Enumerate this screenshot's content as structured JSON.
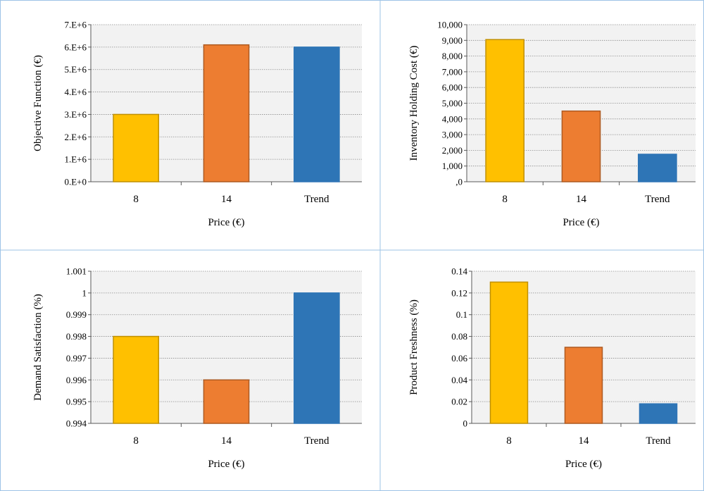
{
  "chart_data": [
    {
      "type": "bar",
      "categories": [
        "8",
        "14",
        "Trend"
      ],
      "values": [
        3000000.0,
        6100000.0,
        6000000.0
      ],
      "xlabel": "Price (€)",
      "ylabel": "Objective Function (€)",
      "ylim": [
        0,
        7000000
      ],
      "yticks": [
        "0.E+0",
        "1.E+6",
        "2.E+6",
        "3.E+6",
        "4.E+6",
        "5.E+6",
        "6.E+6",
        "7.E+6"
      ],
      "grid": true,
      "colors": [
        "#FFC000",
        "#ED7D31",
        "#2E75B6"
      ]
    },
    {
      "type": "bar",
      "categories": [
        "8",
        "14",
        "Trend"
      ],
      "values": [
        9050,
        4500,
        1750
      ],
      "xlabel": "Price (€)",
      "ylabel": "Inventory Holding Cost (€)",
      "ylim": [
        0,
        10000
      ],
      "yticks": [
        ",0",
        "1,000",
        "2,000",
        "3,000",
        "4,000",
        "5,000",
        "6,000",
        "7,000",
        "8,000",
        "9,000",
        "10,000"
      ],
      "grid": true,
      "colors": [
        "#FFC000",
        "#ED7D31",
        "#2E75B6"
      ]
    },
    {
      "type": "bar",
      "categories": [
        "8",
        "14",
        "Trend"
      ],
      "values": [
        0.998,
        0.996,
        1.0
      ],
      "xlabel": "Price (€)",
      "ylabel": "Demand Satisfaction (%)",
      "ylim": [
        0.994,
        1.001
      ],
      "yticks": [
        "0.994",
        "0.995",
        "0.996",
        "0.997",
        "0.998",
        "0.999",
        "1",
        "1.001"
      ],
      "grid": true,
      "colors": [
        "#FFC000",
        "#ED7D31",
        "#2E75B6"
      ]
    },
    {
      "type": "bar",
      "categories": [
        "8",
        "14",
        "Trend"
      ],
      "values": [
        0.13,
        0.07,
        0.018
      ],
      "xlabel": "Price (€)",
      "ylabel": "Product Freshness (%)",
      "ylim": [
        0,
        0.14
      ],
      "yticks": [
        "0",
        "0.02",
        "0.04",
        "0.06",
        "0.08",
        "0.1",
        "0.12",
        "0.14"
      ],
      "grid": true,
      "colors": [
        "#FFC000",
        "#ED7D31",
        "#2E75B6"
      ]
    }
  ]
}
